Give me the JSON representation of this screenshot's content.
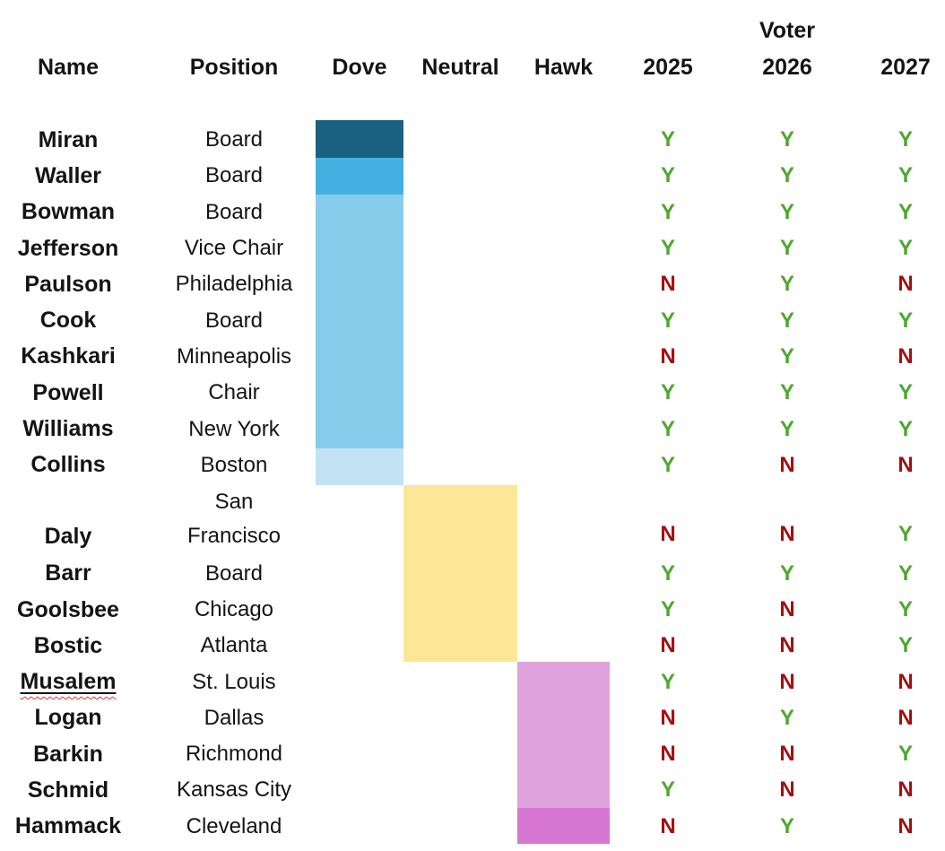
{
  "colors": {
    "dove_dark": "#1A6080",
    "dove_medium": "#45AFE1",
    "dove_light": "#87CBEA",
    "dove_pale": "#C3E3F4",
    "neutral": "#FBE796",
    "hawk_light": "#E0A2DD",
    "hawk_dark": "#D877D2",
    "vote_yes": "#4EA72E",
    "vote_no": "#A50E0E",
    "text": "#141414"
  },
  "header": {
    "voter_label": "Voter",
    "name": "Name",
    "position": "Position",
    "dove": "Dove",
    "neutral": "Neutral",
    "hawk": "Hawk",
    "y2025": "2025",
    "y2026": "2026",
    "y2027": "2027"
  },
  "chart_data": {
    "type": "table",
    "columns": [
      "Name",
      "Position",
      "Dove",
      "Neutral",
      "Hawk",
      "2025",
      "2026",
      "2027"
    ],
    "layout_hints": {
      "stance_encoding": "continuous colored bar spanning member rows: Dove = blue shades (Miran darkest, Collins palest), Neutral = yellow (Daly through Bostic), Hawk = pink (Musalem through Schmid light, Hammack darker)",
      "vote_encoding": "Y green, N dark red"
    },
    "rows": [
      {
        "name": "Miran",
        "position": "Board",
        "stance": "dove_dark",
        "v2025": "Y",
        "v2026": "Y",
        "v2027": "Y"
      },
      {
        "name": "Waller",
        "position": "Board",
        "stance": "dove_medium",
        "v2025": "Y",
        "v2026": "Y",
        "v2027": "Y"
      },
      {
        "name": "Bowman",
        "position": "Board",
        "stance": "dove_light",
        "v2025": "Y",
        "v2026": "Y",
        "v2027": "Y"
      },
      {
        "name": "Jefferson",
        "position": "Vice Chair",
        "stance": "dove_light",
        "v2025": "Y",
        "v2026": "Y",
        "v2027": "Y"
      },
      {
        "name": "Paulson",
        "position": "Philadelphia",
        "stance": "dove_light",
        "v2025": "N",
        "v2026": "Y",
        "v2027": "N"
      },
      {
        "name": "Cook",
        "position": "Board",
        "stance": "dove_light",
        "v2025": "Y",
        "v2026": "Y",
        "v2027": "Y"
      },
      {
        "name": "Kashkari",
        "position": "Minneapolis",
        "stance": "dove_light",
        "v2025": "N",
        "v2026": "Y",
        "v2027": "N"
      },
      {
        "name": "Powell",
        "position": "Chair",
        "stance": "dove_light",
        "v2025": "Y",
        "v2026": "Y",
        "v2027": "Y"
      },
      {
        "name": "Williams",
        "position": "New York",
        "stance": "dove_light",
        "v2025": "Y",
        "v2026": "Y",
        "v2027": "Y"
      },
      {
        "name": "Collins",
        "position": "Boston",
        "stance": "dove_pale",
        "v2025": "Y",
        "v2026": "N",
        "v2027": "N"
      },
      {
        "name": "Daly",
        "position": "San\nFrancisco",
        "stance": "neutral",
        "v2025": "N",
        "v2026": "N",
        "v2027": "Y"
      },
      {
        "name": "Barr",
        "position": "Board",
        "stance": "neutral",
        "v2025": "Y",
        "v2026": "Y",
        "v2027": "Y"
      },
      {
        "name": "Goolsbee",
        "position": "Chicago",
        "stance": "neutral",
        "v2025": "Y",
        "v2026": "N",
        "v2027": "Y"
      },
      {
        "name": "Bostic",
        "position": "Atlanta",
        "stance": "neutral",
        "v2025": "N",
        "v2026": "N",
        "v2027": "Y"
      },
      {
        "name": "Musalem",
        "position": "St. Louis",
        "stance": "hawk_light",
        "v2025": "Y",
        "v2026": "N",
        "v2027": "N"
      },
      {
        "name": "Logan",
        "position": "Dallas",
        "stance": "hawk_light",
        "v2025": "N",
        "v2026": "Y",
        "v2027": "N"
      },
      {
        "name": "Barkin",
        "position": "Richmond",
        "stance": "hawk_light",
        "v2025": "N",
        "v2026": "N",
        "v2027": "Y"
      },
      {
        "name": "Schmid",
        "position": "Kansas City",
        "stance": "hawk_light",
        "v2025": "Y",
        "v2026": "N",
        "v2027": "N"
      },
      {
        "name": "Hammack",
        "position": "Cleveland",
        "stance": "hawk_dark",
        "v2025": "N",
        "v2026": "Y",
        "v2027": "N"
      }
    ]
  }
}
